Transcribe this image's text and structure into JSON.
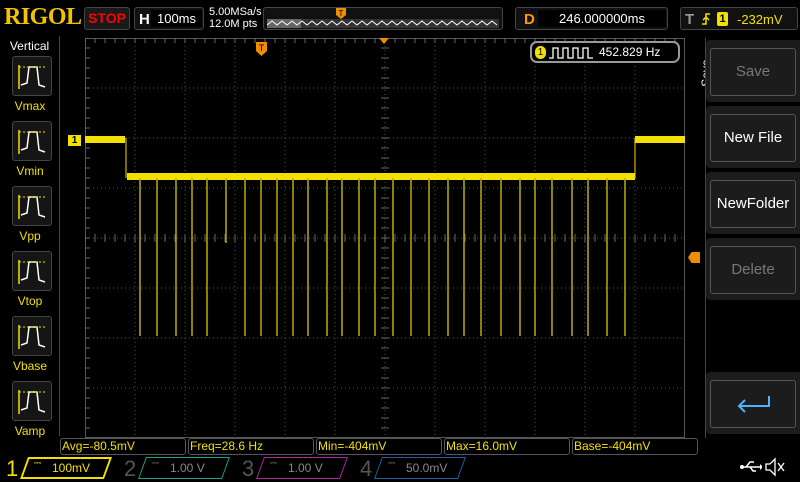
{
  "header": {
    "logo": "RIGOL",
    "run_state": "STOP",
    "horizontal_key": "H",
    "timebase": "100ms",
    "sample_rate": "5.00MSa/s",
    "memory_depth": "12.0M pts",
    "delay_key": "D",
    "delay": "246.000000ms",
    "trigger_key": "T",
    "trigger_source": "1",
    "trigger_level": "-232mV",
    "trigger_edge": "rising-edge-icon"
  },
  "vertical_menu": {
    "title": "Vertical",
    "items": [
      {
        "label": "Vmax"
      },
      {
        "label": "Vmin"
      },
      {
        "label": "Vpp"
      },
      {
        "label": "Vtop"
      },
      {
        "label": "Vbase"
      },
      {
        "label": "Vamp"
      }
    ]
  },
  "frequency_counter": {
    "channel": "1",
    "value": "452.829 Hz"
  },
  "right_menu": {
    "title": "Save",
    "buttons": [
      {
        "label": "Save",
        "enabled": false
      },
      {
        "label": "New File",
        "enabled": true
      },
      {
        "label": "NewFolder",
        "enabled": true
      },
      {
        "label": "Delete",
        "enabled": false
      }
    ],
    "back_icon": "return-arrow-icon"
  },
  "measurements": [
    "Avg=-80.5mV",
    "Freq=28.6 Hz",
    "Min=-404mV",
    "Max=16.0mV",
    "Base=-404mV"
  ],
  "channels": [
    {
      "num": "1",
      "scale": "100mV",
      "color": "#f2e000",
      "active": true
    },
    {
      "num": "2",
      "scale": "1.00 V",
      "color": "#1aa28f",
      "active": false
    },
    {
      "num": "3",
      "scale": "1.00 V",
      "color": "#b0279e",
      "active": false
    },
    {
      "num": "4",
      "scale": "50.0mV",
      "color": "#1e5fa8",
      "active": false
    }
  ],
  "status_icons": [
    "usb-icon",
    "speaker-muted-icon"
  ],
  "colors": {
    "ch1": "#f2e000",
    "trigger": "#f08c00"
  }
}
